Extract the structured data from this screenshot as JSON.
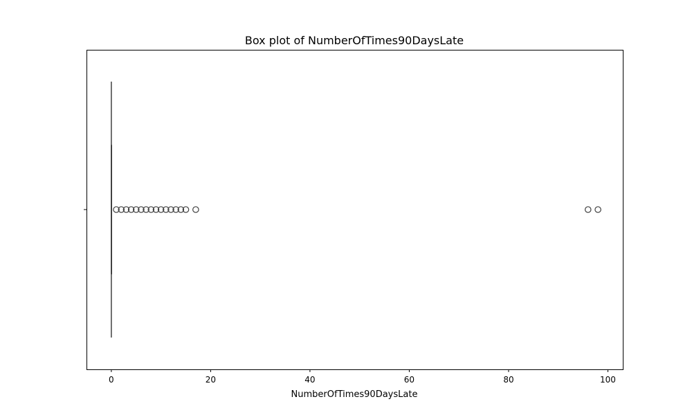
{
  "chart_data": {
    "type": "box",
    "title": "Box plot of NumberOfTimes90DaysLate",
    "xlabel": "NumberOfTimes90DaysLate",
    "ylabel": "",
    "orientation": "horizontal",
    "xlim": [
      -5,
      103
    ],
    "x_ticks": [
      0,
      20,
      40,
      60,
      80,
      100
    ],
    "x_tick_labels": [
      "0",
      "20",
      "40",
      "60",
      "80",
      "100"
    ],
    "grid": false,
    "legend": "none",
    "box": {
      "min": 0,
      "q1": 0,
      "median": 0,
      "q3": 0,
      "max": 0
    },
    "outliers": [
      1,
      2,
      3,
      4,
      5,
      6,
      7,
      8,
      9,
      10,
      11,
      12,
      13,
      14,
      15,
      17,
      96,
      98
    ],
    "colors": {
      "box_line": "#3f3f3f",
      "outlier_edge": "#3f3f3f",
      "frame": "#000000"
    }
  }
}
